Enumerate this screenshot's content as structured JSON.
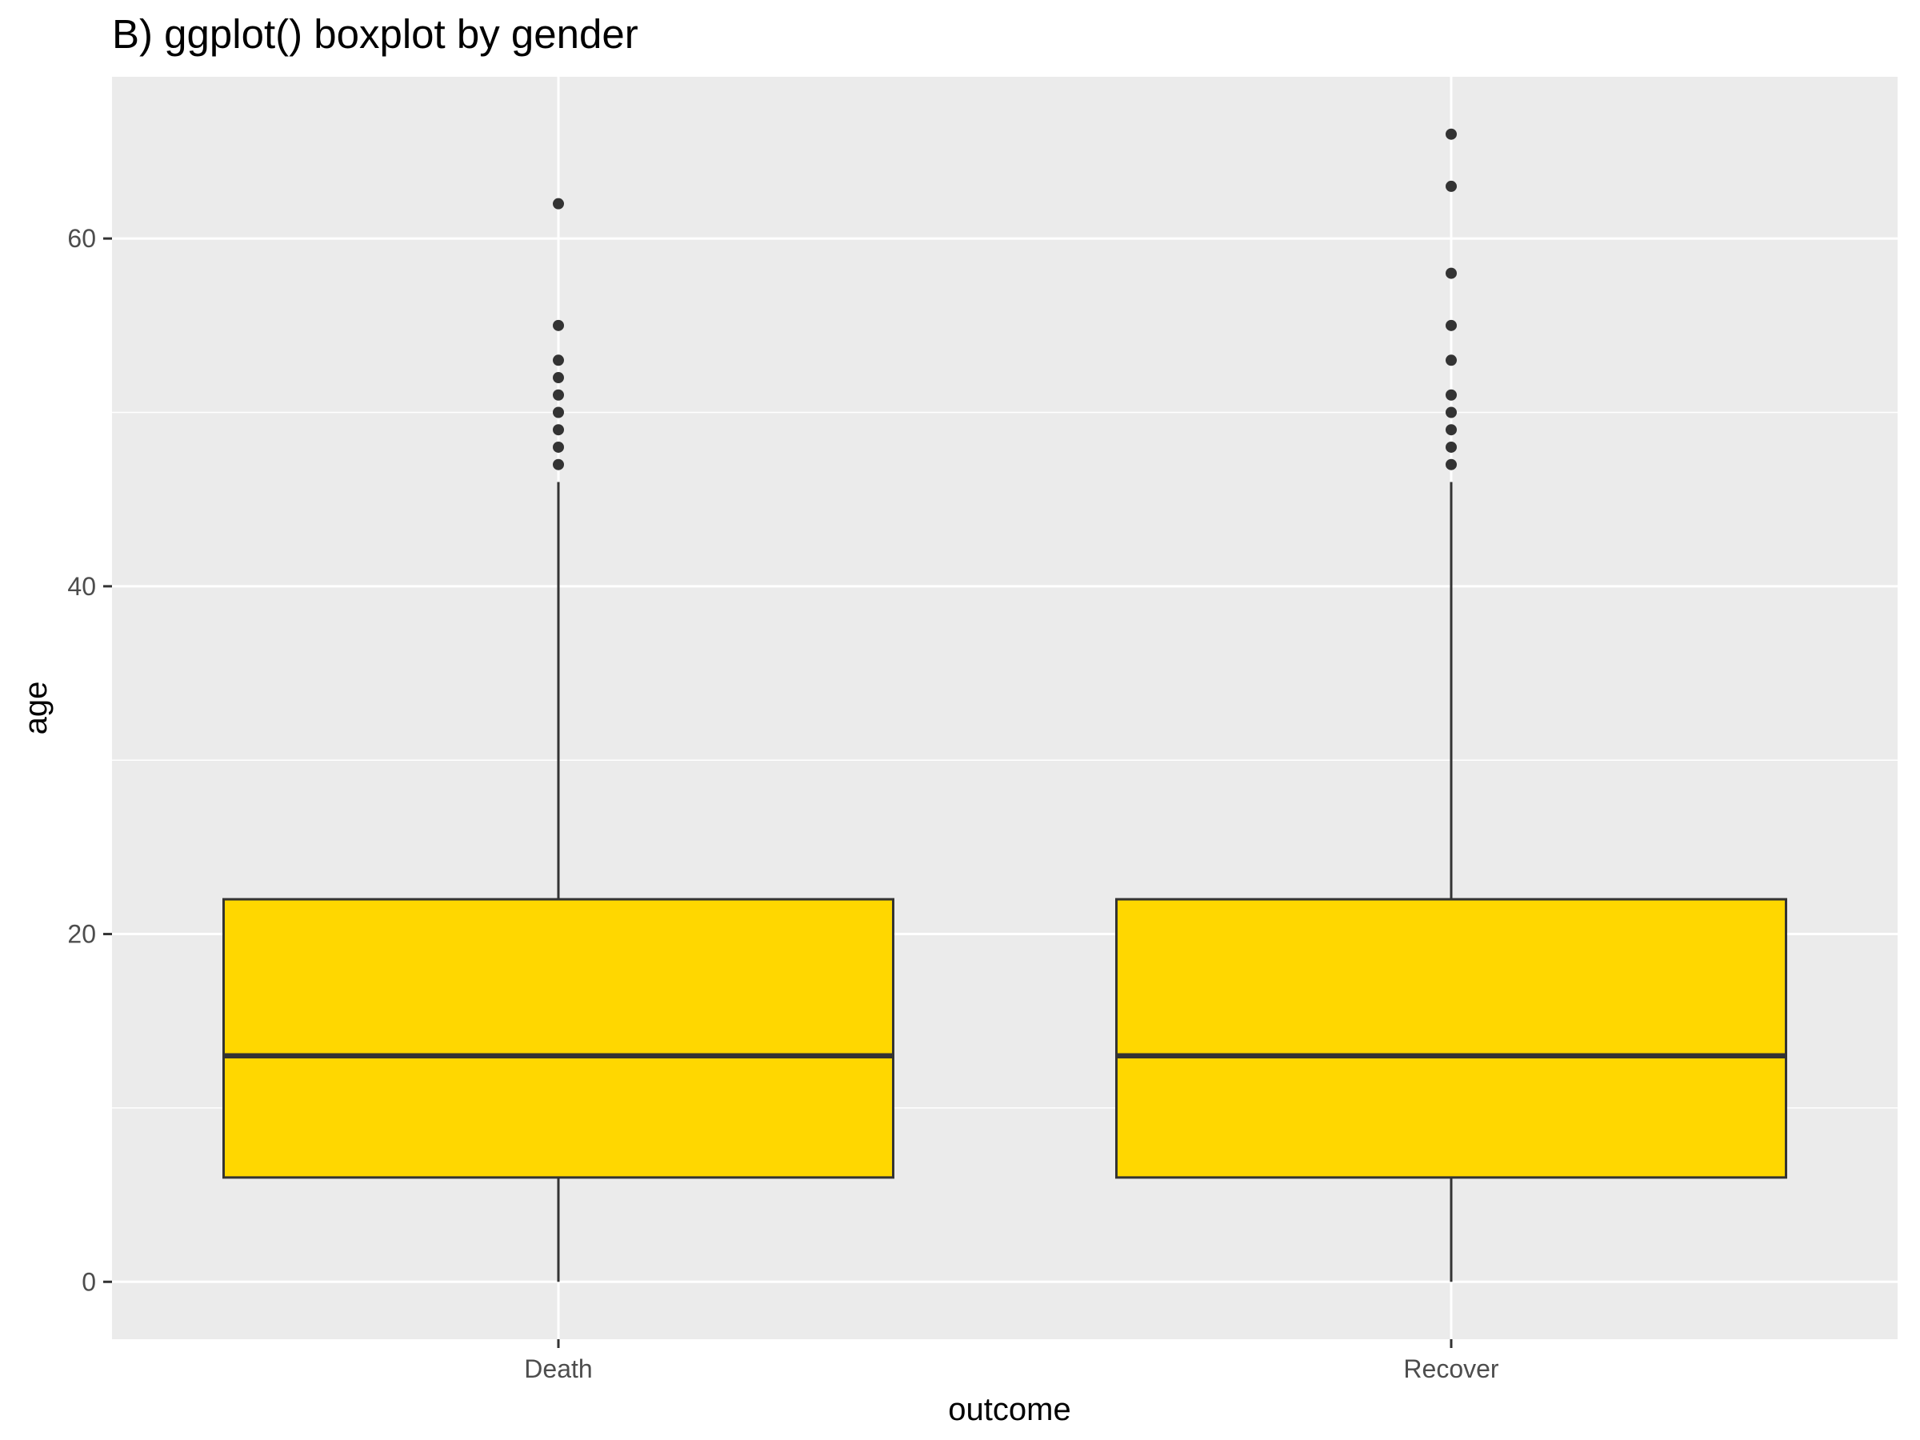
{
  "chart_data": {
    "type": "boxplot",
    "title": "B) ggplot() boxplot by gender",
    "xlabel": "outcome",
    "ylabel": "age",
    "categories": [
      "Death",
      "Recover"
    ],
    "ylim": [
      -3.3,
      69.3
    ],
    "y_ticks": [
      0,
      20,
      40,
      60
    ],
    "grid": true,
    "box_fill": "#FFD700",
    "box_stroke": "#333333",
    "panel_bg": "#EBEBEB",
    "grid_color": "#FFFFFF",
    "boxes": [
      {
        "category": "Death",
        "min": 0,
        "q1": 6,
        "median": 13,
        "q3": 22,
        "whisker_high": 46,
        "outliers": [
          47,
          48,
          49,
          50,
          51,
          52,
          53,
          55,
          62
        ]
      },
      {
        "category": "Recover",
        "min": 0,
        "q1": 6,
        "median": 13,
        "q3": 22,
        "whisker_high": 46,
        "outliers": [
          47,
          48,
          49,
          50,
          51,
          53,
          55,
          58,
          63,
          66
        ]
      }
    ]
  }
}
